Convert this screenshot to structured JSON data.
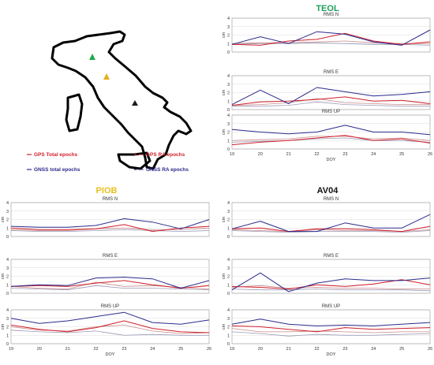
{
  "colors": {
    "gps_total": "#d0202a",
    "gnss_total": "#2a2a8c",
    "gps_ra": "#c98a8a",
    "gnss_ra": "#9a9ab8",
    "map_marker_teol": "#22a84a",
    "map_marker_piob": "#e0b020",
    "map_marker_av04": "#1a1a1a",
    "station_teol": "#1f9e5a",
    "station_piob": "#e8c020",
    "station_av04": "#111111"
  },
  "legend": [
    {
      "label": "GPS Total epochs",
      "color_key": "gps_total",
      "dash": false
    },
    {
      "label": "GNSS total epochs",
      "color_key": "gnss_total",
      "dash": false
    },
    {
      "label": "GPS RA epochs",
      "color_key": "gps_total",
      "dash": true
    },
    {
      "label": "GNSS RA epochs",
      "color_key": "gnss_total",
      "dash": true
    }
  ],
  "map": {
    "markers": [
      "TEOL",
      "PIOB",
      "AV04"
    ]
  },
  "chart_data": [
    {
      "type": "line",
      "station": "TEOL",
      "panel": "RMS N",
      "x": [
        19,
        20,
        21,
        22,
        23,
        24,
        25,
        26
      ],
      "xlabel": "DOY",
      "ylabel": "cm",
      "ylim": [
        0,
        4
      ],
      "yticks": [
        0,
        1,
        2,
        3,
        4
      ],
      "series": [
        {
          "name": "GPS Total epochs",
          "values": [
            0.9,
            0.8,
            1.3,
            1.5,
            2.2,
            1.3,
            0.9,
            1.2
          ]
        },
        {
          "name": "GNSS total epochs",
          "values": [
            0.9,
            1.8,
            1.0,
            2.4,
            2.1,
            1.2,
            0.8,
            2.6
          ]
        },
        {
          "name": "GPS RA epochs",
          "values": [
            1.0,
            1.1,
            1.1,
            1.2,
            1.3,
            1.1,
            1.0,
            1.0
          ]
        },
        {
          "name": "GNSS RA epochs",
          "values": [
            0.9,
            1.0,
            1.0,
            1.1,
            1.0,
            0.9,
            0.9,
            0.8
          ]
        }
      ]
    },
    {
      "type": "line",
      "station": "TEOL",
      "panel": "RMS E",
      "x": [
        19,
        20,
        21,
        22,
        23,
        24,
        25,
        26
      ],
      "xlabel": "DOY",
      "ylabel": "cm",
      "ylim": [
        0,
        4
      ],
      "yticks": [
        0,
        1,
        2,
        3,
        4
      ],
      "series": [
        {
          "name": "GPS Total epochs",
          "values": [
            0.5,
            0.9,
            1.0,
            1.2,
            1.5,
            1.0,
            1.1,
            0.7
          ]
        },
        {
          "name": "GNSS total epochs",
          "values": [
            0.6,
            2.3,
            0.7,
            2.6,
            2.1,
            1.6,
            1.8,
            2.1
          ]
        },
        {
          "name": "GPS RA epochs",
          "values": [
            0.5,
            0.6,
            0.8,
            1.3,
            0.8,
            0.7,
            0.6,
            0.6
          ]
        },
        {
          "name": "GNSS RA epochs",
          "values": [
            0.4,
            0.4,
            0.5,
            0.9,
            0.6,
            0.5,
            0.4,
            0.4
          ]
        }
      ]
    },
    {
      "type": "line",
      "station": "TEOL",
      "panel": "RMS UP",
      "x": [
        19,
        20,
        21,
        22,
        23,
        24,
        25,
        26
      ],
      "xlabel": "DOY",
      "ylabel": "cm",
      "ylim": [
        0,
        4
      ],
      "yticks": [
        0,
        1,
        2,
        3,
        4
      ],
      "series": [
        {
          "name": "GPS Total epochs",
          "values": [
            0.5,
            0.8,
            1.0,
            1.3,
            1.6,
            1.0,
            1.2,
            0.7
          ]
        },
        {
          "name": "GNSS total epochs",
          "values": [
            2.3,
            2.0,
            1.8,
            2.0,
            2.8,
            2.0,
            2.0,
            1.7
          ]
        },
        {
          "name": "GPS RA epochs",
          "values": [
            1.0,
            1.1,
            1.2,
            1.5,
            1.5,
            1.2,
            1.3,
            1.0
          ]
        },
        {
          "name": "GNSS RA epochs",
          "values": [
            0.8,
            0.9,
            1.0,
            1.2,
            1.3,
            1.0,
            1.0,
            0.8
          ]
        }
      ]
    },
    {
      "type": "line",
      "station": "PIOB",
      "panel": "RMS N",
      "x": [
        19,
        20,
        21,
        22,
        23,
        24,
        25,
        26
      ],
      "xlabel": "DOY",
      "ylabel": "cm",
      "ylim": [
        0,
        4
      ],
      "yticks": [
        0,
        1,
        2,
        3,
        4
      ],
      "series": [
        {
          "name": "GPS Total epochs",
          "values": [
            1.0,
            0.8,
            0.8,
            0.9,
            1.4,
            0.6,
            1.0,
            1.2
          ]
        },
        {
          "name": "GNSS total epochs",
          "values": [
            1.2,
            1.1,
            1.1,
            1.3,
            2.1,
            1.7,
            0.9,
            2.0
          ]
        },
        {
          "name": "GPS RA epochs",
          "values": [
            0.8,
            0.7,
            0.7,
            0.9,
            1.0,
            0.8,
            0.8,
            1.0
          ]
        },
        {
          "name": "GNSS RA epochs",
          "values": [
            0.7,
            0.6,
            0.6,
            0.7,
            0.8,
            0.7,
            0.6,
            0.7
          ]
        }
      ]
    },
    {
      "type": "line",
      "station": "PIOB",
      "panel": "RMS E",
      "x": [
        19,
        20,
        21,
        22,
        23,
        24,
        25,
        26
      ],
      "xlabel": "DOY",
      "ylabel": "cm",
      "ylim": [
        0,
        4
      ],
      "yticks": [
        0,
        1,
        2,
        3,
        4
      ],
      "series": [
        {
          "name": "GPS Total epochs",
          "values": [
            0.8,
            0.9,
            0.8,
            1.2,
            1.5,
            1.0,
            0.6,
            0.9
          ]
        },
        {
          "name": "GNSS total epochs",
          "values": [
            0.8,
            1.0,
            0.9,
            1.8,
            1.9,
            1.7,
            0.6,
            1.5
          ]
        },
        {
          "name": "GPS RA epochs",
          "values": [
            0.8,
            0.6,
            0.5,
            1.3,
            0.8,
            0.9,
            0.7,
            0.5
          ]
        },
        {
          "name": "GNSS RA epochs",
          "values": [
            0.6,
            0.5,
            0.4,
            0.9,
            0.6,
            0.6,
            0.5,
            0.4
          ]
        }
      ]
    },
    {
      "type": "line",
      "station": "PIOB",
      "panel": "RMS UP",
      "x": [
        19,
        20,
        21,
        22,
        23,
        24,
        25,
        26
      ],
      "xlabel": "DOY",
      "ylabel": "cm",
      "ylim": [
        0,
        4
      ],
      "yticks": [
        0,
        1,
        2,
        3,
        4
      ],
      "series": [
        {
          "name": "GPS Total epochs",
          "values": [
            2.2,
            1.7,
            1.4,
            1.9,
            2.7,
            1.8,
            1.4,
            1.3
          ]
        },
        {
          "name": "GNSS total epochs",
          "values": [
            3.0,
            2.4,
            2.7,
            3.2,
            3.7,
            2.5,
            2.3,
            2.8
          ]
        },
        {
          "name": "GPS RA epochs",
          "values": [
            2.0,
            1.6,
            1.5,
            2.0,
            2.2,
            1.5,
            1.2,
            1.3
          ]
        },
        {
          "name": "GNSS RA epochs",
          "values": [
            1.6,
            1.4,
            1.3,
            1.5,
            1.0,
            1.1,
            1.0,
            1.0
          ]
        }
      ]
    },
    {
      "type": "line",
      "station": "AV04",
      "panel": "RMS N",
      "x": [
        19,
        20,
        21,
        22,
        23,
        24,
        25,
        26
      ],
      "xlabel": "DOY",
      "ylabel": "cm",
      "ylim": [
        0,
        4
      ],
      "yticks": [
        0,
        1,
        2,
        3,
        4
      ],
      "series": [
        {
          "name": "GPS Total epochs",
          "values": [
            0.9,
            1.0,
            0.6,
            0.9,
            0.9,
            0.8,
            0.6,
            1.2
          ]
        },
        {
          "name": "GNSS total epochs",
          "values": [
            0.9,
            1.8,
            0.6,
            0.6,
            1.6,
            1.0,
            1.0,
            2.6
          ]
        },
        {
          "name": "GPS RA epochs",
          "values": [
            0.8,
            0.7,
            0.6,
            0.8,
            0.7,
            0.7,
            0.6,
            0.8
          ]
        },
        {
          "name": "GNSS RA epochs",
          "values": [
            0.7,
            0.6,
            0.5,
            0.6,
            0.6,
            0.6,
            0.5,
            0.7
          ]
        }
      ]
    },
    {
      "type": "line",
      "station": "AV04",
      "panel": "RMS E",
      "x": [
        19,
        20,
        21,
        22,
        23,
        24,
        25,
        26
      ],
      "xlabel": "DOY",
      "ylabel": "cm",
      "ylim": [
        0,
        4
      ],
      "yticks": [
        0,
        1,
        2,
        3,
        4
      ],
      "series": [
        {
          "name": "GPS Total epochs",
          "values": [
            0.8,
            0.7,
            0.5,
            1.0,
            0.8,
            1.1,
            1.6,
            1.0
          ]
        },
        {
          "name": "GNSS total epochs",
          "values": [
            0.4,
            2.4,
            0.2,
            1.2,
            1.7,
            1.5,
            1.5,
            1.8
          ]
        },
        {
          "name": "GPS RA epochs",
          "values": [
            0.7,
            0.9,
            0.6,
            0.7,
            0.6,
            0.6,
            0.5,
            0.5
          ]
        },
        {
          "name": "GNSS RA epochs",
          "values": [
            0.5,
            0.4,
            0.4,
            0.5,
            0.4,
            0.4,
            0.4,
            0.3
          ]
        }
      ]
    },
    {
      "type": "line",
      "station": "AV04",
      "panel": "RMS UP",
      "x": [
        19,
        20,
        21,
        22,
        23,
        24,
        25,
        26
      ],
      "xlabel": "DOY",
      "ylabel": "cm",
      "ylim": [
        0,
        4
      ],
      "yticks": [
        0,
        1,
        2,
        3,
        4
      ],
      "series": [
        {
          "name": "GPS Total epochs",
          "values": [
            2.1,
            2.0,
            1.7,
            1.4,
            1.9,
            1.7,
            1.8,
            1.9
          ]
        },
        {
          "name": "GNSS total epochs",
          "values": [
            2.3,
            2.9,
            2.3,
            2.1,
            2.2,
            2.1,
            2.3,
            2.5
          ]
        },
        {
          "name": "GPS RA epochs",
          "values": [
            1.8,
            1.4,
            1.4,
            1.5,
            1.4,
            1.3,
            1.4,
            1.4
          ]
        },
        {
          "name": "GNSS RA epochs",
          "values": [
            1.4,
            1.2,
            0.9,
            1.1,
            1.0,
            1.0,
            1.1,
            1.2
          ]
        }
      ]
    }
  ]
}
